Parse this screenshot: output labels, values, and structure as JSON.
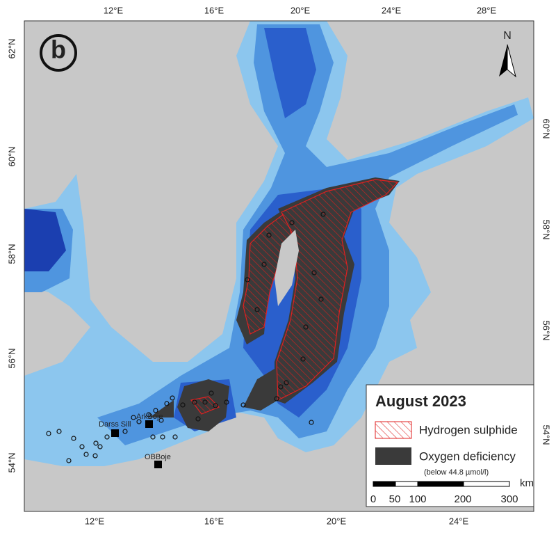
{
  "panel_label": "b",
  "north_arrow": "N",
  "graticule": {
    "top": [
      "12°E",
      "16°E",
      "20°E",
      "24°E",
      "28°E"
    ],
    "bottom": [
      "12°E",
      "16°E",
      "20°E",
      "24°E"
    ],
    "left": [
      "62°N",
      "60°N",
      "58°N",
      "56°N",
      "54°N"
    ],
    "right": [
      "60°N",
      "58°N",
      "56°N",
      "54°N"
    ]
  },
  "stations": [
    "Darss Sill",
    "ArkBoje",
    "OBBoje"
  ],
  "legend": {
    "title": "August 2023",
    "items": [
      {
        "label": "Hydrogen sulphide"
      },
      {
        "label": "Oxygen deficiency",
        "note": "(below 44.8 µmol/l)"
      }
    ]
  },
  "scale_bar": {
    "labels": [
      "0",
      "50",
      "100",
      "200",
      "300"
    ],
    "unit": "km"
  }
}
